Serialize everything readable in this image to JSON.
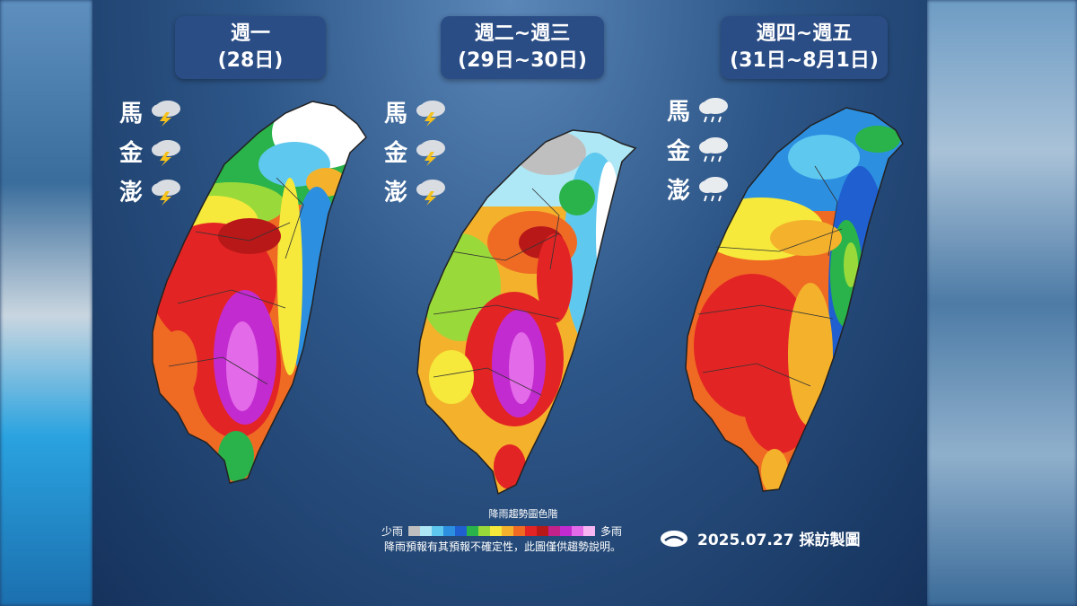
{
  "panels": [
    {
      "title_day": "週一",
      "title_date": "(28日)"
    },
    {
      "title_day": "週二~週三",
      "title_date": "(29日~30日)"
    },
    {
      "title_day": "週四~週五",
      "title_date": "(31日~8月1日)"
    }
  ],
  "islands": {
    "p1": [
      {
        "name": "馬",
        "icon": "thunderstorm-icon"
      },
      {
        "name": "金",
        "icon": "thunderstorm-icon"
      },
      {
        "name": "澎",
        "icon": "thunderstorm-icon"
      }
    ],
    "p2": [
      {
        "name": "馬",
        "icon": "thunderstorm-icon"
      },
      {
        "name": "金",
        "icon": "thunderstorm-icon"
      },
      {
        "name": "澎",
        "icon": "thunderstorm-icon"
      }
    ],
    "p3": [
      {
        "name": "馬",
        "icon": "rain-icon"
      },
      {
        "name": "金",
        "icon": "rain-icon"
      },
      {
        "name": "澎",
        "icon": "rain-icon"
      }
    ]
  },
  "legend": {
    "title": "降雨趨勢圖色階",
    "low": "少雨",
    "high": "多雨",
    "note": "降雨預報有其預報不確定性，此圖僅供趨勢說明。",
    "colors": [
      "#bfbfbf",
      "#aee7f5",
      "#5fc8ef",
      "#2c8fe0",
      "#1f5fd0",
      "#29b34a",
      "#9ad93a",
      "#f6e93b",
      "#f4b22c",
      "#ef6b24",
      "#e32424",
      "#b81818",
      "#c2228a",
      "#c22bd0",
      "#e36ae8",
      "#f7b6f2"
    ]
  },
  "credit": {
    "text": "2025.07.27 採訪製圖",
    "logo": "cwa-logo-icon"
  }
}
